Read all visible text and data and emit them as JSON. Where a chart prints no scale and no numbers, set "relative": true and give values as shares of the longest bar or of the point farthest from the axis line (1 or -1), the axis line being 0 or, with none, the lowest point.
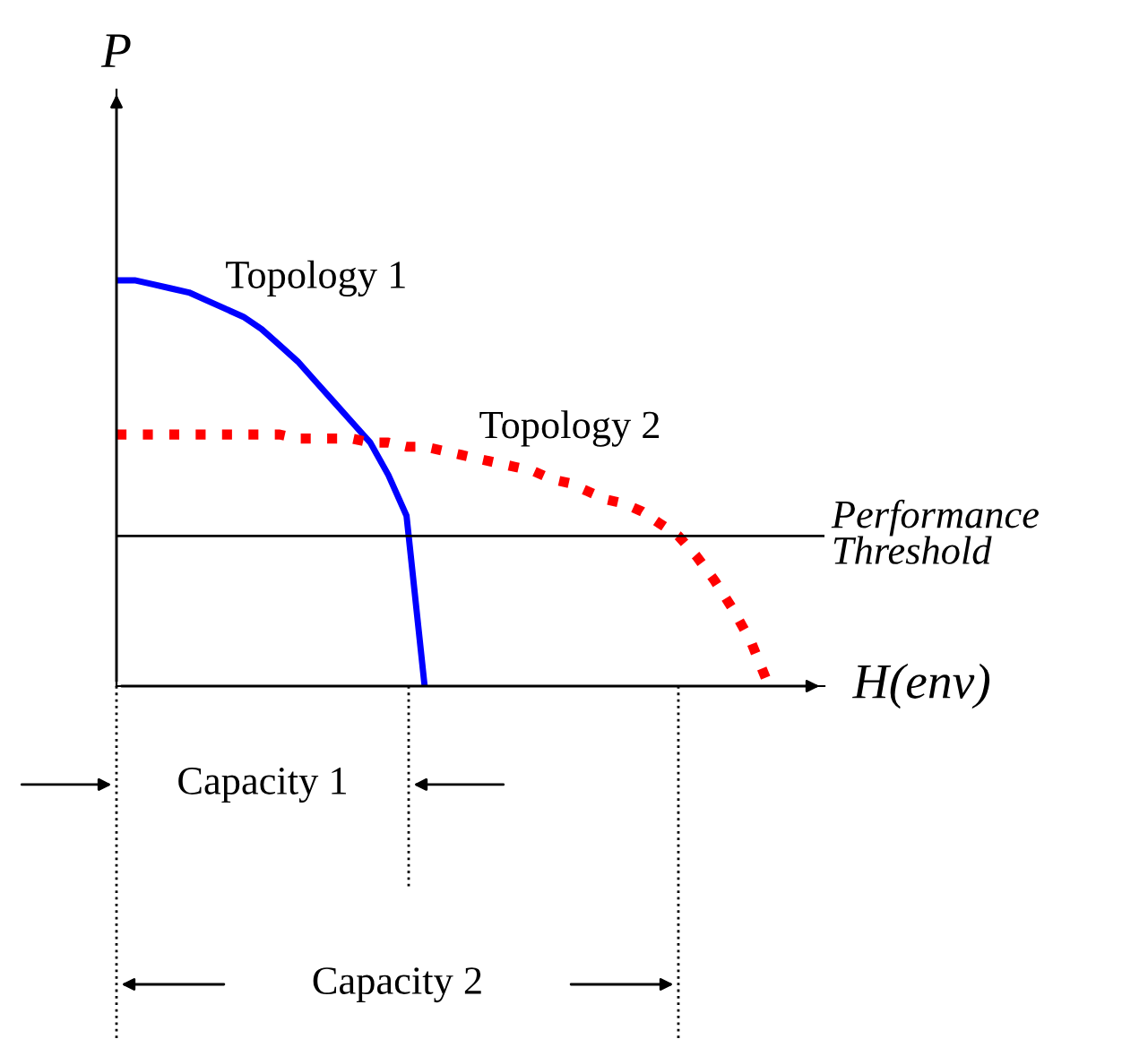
{
  "chart_data": {
    "type": "line",
    "relative": true,
    "xlabel": "H(env)",
    "ylabel": "P",
    "legend": false,
    "grid": false,
    "categories": [
      null,
      null,
      null,
      null,
      null,
      null,
      null,
      null,
      null,
      null,
      null,
      null,
      null,
      null,
      null,
      null,
      null,
      null,
      null,
      null,
      null,
      null,
      null,
      null,
      null,
      null,
      null,
      null,
      null,
      null,
      null,
      null,
      null,
      null,
      null,
      null,
      null
    ],
    "series": [
      {
        "name": "Topology 1",
        "color": "#0000ff",
        "line_style": "solid",
        "values": [
          1.0,
          1.0,
          0.99,
          0.98,
          0.97,
          0.95,
          0.93,
          0.91,
          0.88,
          0.84,
          0.8,
          0.75,
          0.7,
          0.65,
          0.6,
          0.52,
          0.42,
          0.0,
          null,
          null,
          null,
          null,
          null,
          null,
          null,
          null,
          null,
          null,
          null,
          null,
          null,
          null,
          null,
          null,
          null,
          null,
          null
        ]
      },
      {
        "name": "Topology 2",
        "color": "#ff0000",
        "line_style": "dotted",
        "values": [
          0.62,
          0.62,
          0.62,
          0.62,
          0.62,
          0.62,
          0.62,
          0.62,
          0.62,
          0.62,
          0.61,
          0.61,
          0.61,
          0.61,
          0.6,
          0.6,
          0.59,
          0.59,
          0.58,
          0.57,
          0.56,
          0.55,
          0.54,
          0.53,
          0.51,
          0.5,
          0.48,
          0.46,
          0.45,
          0.43,
          0.4,
          0.37,
          0.32,
          0.26,
          0.19,
          0.11,
          0.0
        ]
      }
    ],
    "ref_lines": [
      {
        "axis": "y",
        "value": 0.37,
        "label": "Performance\nThreshold",
        "color": "#000000"
      }
    ],
    "annotations": [
      "Capacity 1",
      "Capacity 2"
    ]
  }
}
